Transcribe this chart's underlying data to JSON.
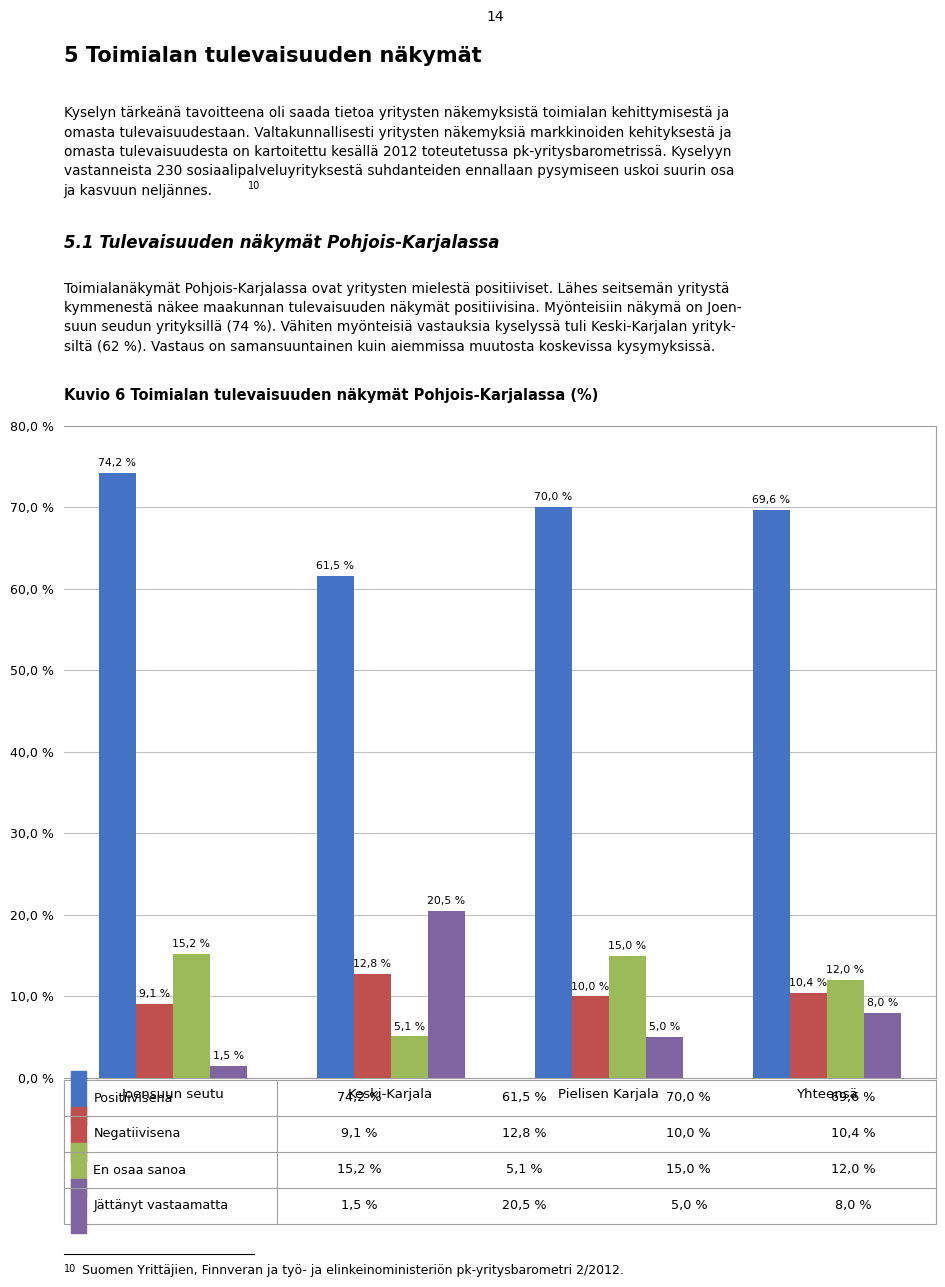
{
  "page_number": "14",
  "title_h1": "5 Toimialan tulevaisuuden näkymät",
  "para1_lines": [
    "Kyselyn tärkeänä tavoitteena oli saada tietoa yritysten näkemyksistä toimialan kehittymisestä ja",
    "omasta tulevaisuudestaan. Valtakunnallisesti yritysten näkemyksiä markkinoiden kehityksestä ja",
    "omasta tulevaisuudesta on kartoitettu kesällä 2012 toteutetussa pk-yritysbarometrissä. Kyselyyn",
    "vastanneista 230 sosiaalipalveluyrityksestä suhdanteiden ennallaan pysymiseen uskoi suurin osa",
    "ja kasvuun neljännes."
  ],
  "title_h2": "5.1 Tulevaisuuden näkymät Pohjois-Karjalassa",
  "para2_lines": [
    "Toimialanäkymät Pohjois-Karjalassa ovat yritysten mielestä positiiviset. Lähes seitsemän yritystä",
    "kymmenestä näkee maakunnan tulevaisuuden näkymät positiivisina. Myönteisiin näkymä on Joen-",
    "suun seudun yrityksillä (74 %). Vähiten myönteisiä vastauksia kyselyssä tuli Keski-Karjalan yrityk-",
    "siltä (62 %). Vastaus on samansuuntainen kuin aiemmissa muutosta koskevissa kysymyksissä."
  ],
  "chart_title": "Kuvio 6 Toimialan tulevaisuuden näkymät Pohjois-Karjalassa (%)",
  "categories": [
    "Joensuun seutu",
    "Keski-Karjala",
    "Pielisen Karjala",
    "Yhteensä"
  ],
  "series": [
    {
      "name": "Positiivisena",
      "color": "#4472C4",
      "values": [
        74.2,
        61.5,
        70.0,
        69.6
      ]
    },
    {
      "name": "Negatiivisena",
      "color": "#C0504D",
      "values": [
        9.1,
        12.8,
        10.0,
        10.4
      ]
    },
    {
      "name": "En osaa sanoa",
      "color": "#9BBB59",
      "values": [
        15.2,
        5.1,
        15.0,
        12.0
      ]
    },
    {
      "name": "Jättänyt vastaamatta",
      "color": "#8064A2",
      "values": [
        1.5,
        20.5,
        5.0,
        8.0
      ]
    }
  ],
  "yticks": [
    0,
    10,
    20,
    30,
    40,
    50,
    60,
    70,
    80
  ],
  "ytick_labels": [
    "0,0 %",
    "10,0 %",
    "20,0 %",
    "30,0 %",
    "40,0 %",
    "50,0 %",
    "60,0 %",
    "70,0 %",
    "80,0 %"
  ],
  "footnote_text": "10 Suomen Yrittäjien, Finnveran ja työ- ja elinkeinoministeriön pk-yritysbarometri 2/2012.",
  "bg_color": "#ffffff",
  "grid_color": "#C0C0C0"
}
